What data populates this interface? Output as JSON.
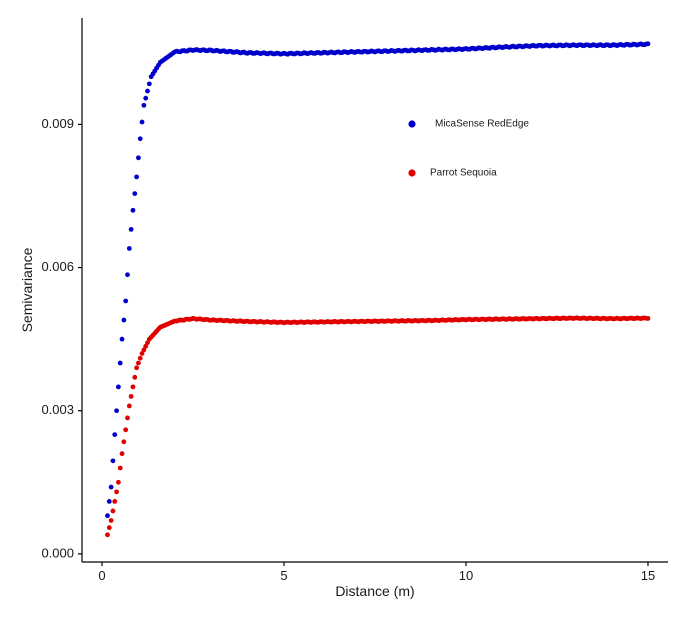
{
  "chart_data": {
    "type": "scatter",
    "title": "",
    "xlabel": "Distance (m)",
    "ylabel": "Semivariance",
    "xlim": [
      -0.55,
      15.55
    ],
    "ylim": [
      -0.00017,
      0.01123
    ],
    "xticks": [
      0,
      5,
      10,
      15
    ],
    "xtick_labels": [
      "0",
      "5",
      "10",
      "15"
    ],
    "yticks": [
      0.0,
      0.003,
      0.006,
      0.009
    ],
    "ytick_labels": [
      "0.000",
      "0.003",
      "0.006",
      "0.009"
    ],
    "grid": false,
    "legend_position": "top-right",
    "series": [
      {
        "name": "MicaSense RedEdge",
        "color": "#0000cc",
        "x_range": [
          0.15,
          15.0
        ],
        "sample_points": [
          [
            0.15,
            0.0008
          ],
          [
            0.25,
            0.0014
          ],
          [
            0.35,
            0.0025
          ],
          [
            0.45,
            0.0035
          ],
          [
            0.55,
            0.0045
          ],
          [
            0.65,
            0.0053
          ],
          [
            0.75,
            0.0064
          ],
          [
            0.85,
            0.0072
          ],
          [
            0.95,
            0.0079
          ],
          [
            1.05,
            0.0087
          ],
          [
            1.15,
            0.0094
          ],
          [
            1.35,
            0.01
          ],
          [
            1.6,
            0.0103
          ],
          [
            2.0,
            0.01052
          ],
          [
            2.5,
            0.01056
          ],
          [
            3.0,
            0.01055
          ],
          [
            4.0,
            0.0105
          ],
          [
            5.0,
            0.01048
          ],
          [
            6.0,
            0.0105
          ],
          [
            7.0,
            0.01052
          ],
          [
            8.0,
            0.01054
          ],
          [
            9.0,
            0.01056
          ],
          [
            10.0,
            0.01058
          ],
          [
            11.0,
            0.01062
          ],
          [
            12.0,
            0.01065
          ],
          [
            13.0,
            0.01066
          ],
          [
            14.0,
            0.01066
          ],
          [
            15.0,
            0.01068
          ]
        ]
      },
      {
        "name": "Parrot Sequoia",
        "color": "#e00000",
        "x_range": [
          0.15,
          15.0
        ],
        "sample_points": [
          [
            0.15,
            0.0004
          ],
          [
            0.25,
            0.0007
          ],
          [
            0.35,
            0.0011
          ],
          [
            0.45,
            0.0015
          ],
          [
            0.55,
            0.0021
          ],
          [
            0.65,
            0.0026
          ],
          [
            0.75,
            0.0031
          ],
          [
            0.85,
            0.0035
          ],
          [
            0.95,
            0.0039
          ],
          [
            1.1,
            0.0042
          ],
          [
            1.3,
            0.0045
          ],
          [
            1.6,
            0.00475
          ],
          [
            2.0,
            0.00488
          ],
          [
            2.5,
            0.00493
          ],
          [
            3.0,
            0.0049
          ],
          [
            4.0,
            0.00487
          ],
          [
            5.0,
            0.00485
          ],
          [
            6.0,
            0.00486
          ],
          [
            7.0,
            0.00487
          ],
          [
            8.0,
            0.00488
          ],
          [
            9.0,
            0.00489
          ],
          [
            10.0,
            0.00491
          ],
          [
            11.0,
            0.00492
          ],
          [
            12.0,
            0.00493
          ],
          [
            13.0,
            0.00494
          ],
          [
            14.0,
            0.00493
          ],
          [
            15.0,
            0.00494
          ]
        ]
      }
    ]
  }
}
